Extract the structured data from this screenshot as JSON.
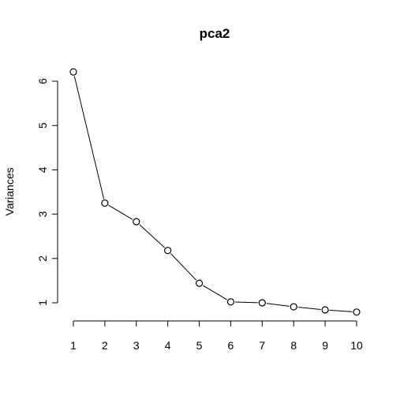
{
  "chart_data": {
    "type": "line",
    "title": "pca2",
    "xlabel": "",
    "ylabel": "Variances",
    "x": [
      1,
      2,
      3,
      4,
      5,
      6,
      7,
      8,
      9,
      10
    ],
    "values": [
      6.21,
      3.25,
      2.83,
      2.18,
      1.44,
      1.02,
      1.0,
      0.91,
      0.84,
      0.79
    ],
    "xticks": [
      "1",
      "2",
      "3",
      "4",
      "5",
      "6",
      "7",
      "8",
      "9",
      "10"
    ],
    "yticks": [
      "1",
      "2",
      "3",
      "4",
      "5",
      "6"
    ],
    "xlim": [
      1,
      10
    ],
    "ylim": [
      1,
      6
    ],
    "grid": false,
    "marker": "open-circle"
  }
}
